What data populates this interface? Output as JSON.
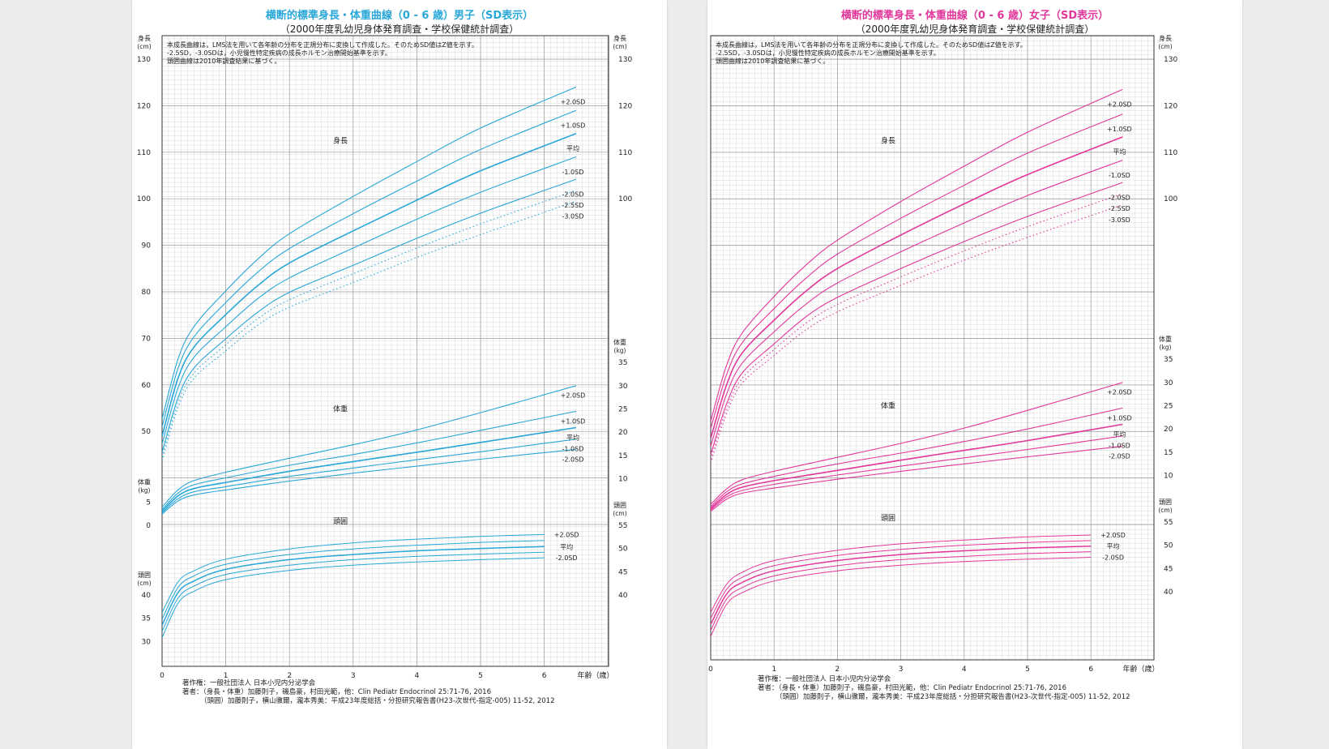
{
  "colors": {
    "boys": "#29a7d8",
    "girls": "#e2379a"
  },
  "charts": [
    {
      "id": "boys",
      "title": "横断的標準身長・体重曲線（0 - 6 歳）男子（SD表示）",
      "subtitle": "（2000年度乳幼児身体発育調査・学校保健統計調査）",
      "notes": [
        "本成長曲線は，LMS法を用いて各年齢の分布を正規分布に変換して作成した。そのためSD値はZ値を示す。",
        "-2.5SD，-3.0SDは，小児慢性特定疾病の成長ホルモン治療開始基準を示す。",
        "頭囲曲線は2010年調査結果に基づく。"
      ],
      "axis_left_height": "身長",
      "axis_unit_cm": "(cm)",
      "axis_weight": "体重",
      "axis_unit_kg": "(kg)",
      "axis_head": "頭囲",
      "x_label": "年齢（歳）",
      "section_height": "身長",
      "section_weight": "体重",
      "section_head": "頭囲",
      "footer": [
        "著作権：一般社団法人 日本小児内分泌学会",
        "著者：（身長・体重）加藤則子，磯島豪，村田光範，他：Clin Pediatr Endocrinol 25:71-76, 2016",
        "（頭囲）加藤則子，横山徹爾，瀧本秀美：平成23年度総括・分担研究報告書(H23-次世代-指定-005) 11-52, 2012"
      ]
    },
    {
      "id": "girls",
      "title": "横断的標準身長・体重曲線（0 - 6 歳）女子（SD表示）",
      "subtitle": "（2000年度乳幼児身体発育調査・学校保健統計調査）",
      "notes": [
        "本成長曲線は，LMS法を用いて各年齢の分布を正規分布に変換して作成した。そのためSD値はZ値を示す。",
        "-2.5SD，-3.0SDは，小児慢性特定疾病の成長ホルモン治療開始基準を示す。",
        "頭囲曲線は2010年調査結果に基づく。"
      ],
      "axis_left_height": "身長",
      "axis_unit_cm": "(cm)",
      "axis_weight": "体重",
      "axis_unit_kg": "(kg)",
      "axis_head": "頭囲",
      "x_label": "年齢（歳）",
      "section_height": "身長",
      "section_weight": "体重",
      "section_head": "頭囲",
      "footer": [
        "著作権：一般社団法人 日本小児内分泌学会",
        "著者：（身長・体重）加藤則子，磯島豪，村田光範，他：Clin Pediatr Endocrinol 25:71-76, 2016",
        "（頭囲）加藤則子，横山徹爾，瀧本秀美：平成23年度総括・分担研究報告書(H23-次世代-指定-005) 11-52, 2012"
      ]
    }
  ],
  "chart_data": [
    {
      "type": "line",
      "name": "boys",
      "x_ticks": [
        0,
        1,
        2,
        3,
        4,
        5,
        6
      ],
      "height_ticks": [
        30,
        35,
        40,
        50,
        60,
        70,
        80,
        90,
        100,
        110,
        120,
        130
      ],
      "weight_ticks_left": [
        0,
        5
      ],
      "weight_ticks_right": [
        10,
        15,
        20,
        25,
        30,
        35
      ],
      "head_ticks_right": [
        40,
        45,
        50,
        55
      ],
      "head_ticks_left": [
        30,
        35,
        40
      ],
      "height_ages": [
        0,
        0.25,
        0.5,
        1,
        1.5,
        2,
        3,
        4,
        5,
        6.5
      ],
      "height": [
        {
          "label": "+2.0SD",
          "values": [
            52.7,
            65.5,
            72.5,
            80.2,
            87.0,
            92.5,
            100.5,
            108.0,
            115.2,
            124.0
          ]
        },
        {
          "label": "+1.0SD",
          "values": [
            51.0,
            63.5,
            70.3,
            77.7,
            84.2,
            89.3,
            96.8,
            103.8,
            110.6,
            119.0
          ]
        },
        {
          "label": "平均",
          "values": [
            49.0,
            61.4,
            68.1,
            75.1,
            81.3,
            86.2,
            93.1,
            99.7,
            106.0,
            114.0
          ]
        },
        {
          "label": "-1.0SD",
          "values": [
            47.3,
            59.3,
            65.9,
            72.5,
            78.5,
            83.0,
            89.4,
            95.6,
            101.4,
            109.0
          ]
        },
        {
          "label": "-2.0SD",
          "values": [
            45.5,
            57.2,
            63.6,
            69.9,
            75.6,
            79.9,
            85.7,
            91.5,
            96.9,
            104.2
          ]
        },
        {
          "label": "-2.5SD",
          "values": [
            44.6,
            56.2,
            62.5,
            68.6,
            74.2,
            78.3,
            83.9,
            89.4,
            94.6,
            101.8
          ]
        },
        {
          "label": "-3.0SD",
          "values": [
            43.7,
            55.1,
            61.4,
            67.3,
            72.8,
            76.7,
            82.0,
            87.4,
            92.3,
            99.5
          ]
        }
      ],
      "weight_ages": [
        0,
        0.25,
        0.5,
        1,
        2,
        3,
        4,
        5,
        6.5
      ],
      "weight": [
        {
          "label": "+2.0SD",
          "values": [
            3.9,
            7.6,
            9.6,
            11.4,
            14.4,
            17.3,
            20.5,
            24.2,
            30.0
          ]
        },
        {
          "label": "+1.0SD",
          "values": [
            3.4,
            6.9,
            8.7,
            10.2,
            12.9,
            15.2,
            17.7,
            20.4,
            24.5
          ]
        },
        {
          "label": "平均",
          "values": [
            3.0,
            6.3,
            7.9,
            9.2,
            11.6,
            13.7,
            15.7,
            17.8,
            21.0
          ]
        },
        {
          "label": "-1.0SD",
          "values": [
            2.7,
            5.7,
            7.2,
            8.3,
            10.5,
            12.3,
            14.1,
            15.8,
            18.5
          ]
        },
        {
          "label": "-2.0SD",
          "values": [
            2.4,
            5.2,
            6.5,
            7.6,
            9.5,
            11.2,
            12.7,
            14.2,
            16.3
          ]
        }
      ],
      "head_ages": [
        0,
        0.25,
        0.5,
        1,
        2,
        3,
        4,
        5,
        6
      ],
      "head": [
        {
          "label": "+2.0SD",
          "values": [
            36.2,
            42.8,
            45.2,
            47.7,
            49.9,
            51.2,
            52.0,
            52.6,
            53.0
          ]
        },
        {
          "label": "平均",
          "values": [
            33.5,
            40.5,
            43.0,
            45.5,
            47.6,
            48.7,
            49.5,
            50.0,
            50.4
          ]
        },
        {
          "label": "-2.0SD",
          "values": [
            30.8,
            38.2,
            40.8,
            43.3,
            45.3,
            46.4,
            47.1,
            47.6,
            48.0
          ]
        },
        {
          "label": "",
          "values": [
            34.8,
            41.6,
            44.1,
            46.6,
            48.7,
            49.9,
            50.7,
            51.3,
            51.7
          ]
        },
        {
          "label": "",
          "values": [
            32.2,
            39.3,
            41.9,
            44.4,
            46.4,
            47.6,
            48.3,
            48.8,
            49.2
          ]
        }
      ],
      "weight_unlabeled_sd": "-1.5",
      "end_labels_height": [
        "+2.0SD",
        "+1.0SD",
        "平均",
        "-1.0SD",
        "-2.0SD",
        "-2.5SD",
        "-3.0SD"
      ],
      "end_labels_weight": [
        "+2.0SD",
        "+1.0SD",
        "平均",
        "-1.0SD",
        "-2.0SD"
      ],
      "end_labels_head": [
        "+2.0SD",
        "平均",
        "-2.0SD"
      ]
    },
    {
      "type": "line",
      "name": "girls",
      "x_ticks": [
        0,
        1,
        2,
        3,
        4,
        5,
        6
      ],
      "height_ticks": [
        30,
        35,
        40,
        50,
        60,
        70,
        80,
        90,
        100,
        110,
        120,
        130
      ],
      "weight_ticks_left": [
        0,
        5
      ],
      "weight_ticks_right": [
        10,
        15,
        20,
        25,
        30,
        35
      ],
      "head_ticks_right": [
        40,
        45,
        50,
        55
      ],
      "head_ticks_left": [
        30,
        35,
        40
      ],
      "height_ages": [
        0,
        0.25,
        0.5,
        1,
        1.5,
        2,
        3,
        4,
        5,
        6.5
      ],
      "height": [
        {
          "label": "+2.0SD",
          "values": [
            52.2,
            64.2,
            71.2,
            79.0,
            85.7,
            91.1,
            99.4,
            107.0,
            114.3,
            123.5
          ]
        },
        {
          "label": "+1.0SD",
          "values": [
            50.6,
            62.2,
            69.1,
            76.4,
            82.9,
            88.1,
            95.8,
            102.9,
            109.8,
            118.2
          ]
        },
        {
          "label": "平均",
          "values": [
            48.5,
            60.0,
            66.9,
            73.9,
            80.1,
            85.0,
            92.2,
            98.9,
            105.2,
            113.3
          ]
        },
        {
          "label": "-1.0SD",
          "values": [
            46.8,
            58.0,
            64.7,
            71.4,
            77.3,
            81.9,
            88.6,
            94.8,
            100.7,
            108.3
          ]
        },
        {
          "label": "-2.0SD",
          "values": [
            45.0,
            55.9,
            62.6,
            68.8,
            74.6,
            78.8,
            85.0,
            90.8,
            96.2,
            103.5
          ]
        },
        {
          "label": "-2.5SD",
          "values": [
            44.1,
            54.9,
            61.5,
            67.6,
            73.2,
            77.3,
            83.2,
            88.8,
            94.0,
            101.1
          ]
        },
        {
          "label": "-3.0SD",
          "values": [
            43.2,
            53.8,
            60.4,
            66.3,
            71.8,
            75.7,
            81.4,
            86.8,
            91.7,
            98.7
          ]
        }
      ],
      "weight_ages": [
        0,
        0.25,
        0.5,
        1,
        2,
        3,
        4,
        5,
        6.5
      ],
      "weight": [
        {
          "label": "+2.0SD",
          "values": [
            3.8,
            7.1,
            9.1,
            10.9,
            13.9,
            16.9,
            20.2,
            24.0,
            30.0
          ]
        },
        {
          "label": "+1.0SD",
          "values": [
            3.3,
            6.5,
            8.2,
            9.8,
            12.5,
            14.8,
            17.3,
            20.0,
            24.5
          ]
        },
        {
          "label": "平均",
          "values": [
            2.9,
            5.9,
            7.5,
            8.9,
            11.1,
            13.3,
            15.4,
            17.5,
            21.0
          ]
        },
        {
          "label": "-1.0SD",
          "values": [
            2.6,
            5.4,
            6.8,
            8.1,
            10.1,
            12.0,
            13.8,
            15.6,
            18.5
          ]
        },
        {
          "label": "-2.0SD",
          "values": [
            2.3,
            4.9,
            6.2,
            7.3,
            9.2,
            10.9,
            12.5,
            14.0,
            16.3
          ]
        }
      ],
      "head_ages": [
        0,
        0.25,
        0.5,
        1,
        2,
        3,
        4,
        5,
        6
      ],
      "head": [
        {
          "label": "+2.0SD",
          "values": [
            35.6,
            41.6,
            44.2,
            46.7,
            48.9,
            50.3,
            51.1,
            51.8,
            52.2
          ]
        },
        {
          "label": "平均",
          "values": [
            33.0,
            39.5,
            42.0,
            44.5,
            46.7,
            48.0,
            48.8,
            49.4,
            49.8
          ]
        },
        {
          "label": "-2.0SD",
          "values": [
            30.4,
            37.3,
            39.8,
            42.3,
            44.5,
            45.7,
            46.5,
            47.0,
            47.4
          ]
        },
        {
          "label": "",
          "values": [
            34.3,
            40.5,
            43.1,
            45.6,
            47.8,
            49.1,
            50.0,
            50.6,
            51.0
          ]
        },
        {
          "label": "",
          "values": [
            31.7,
            38.4,
            40.9,
            43.4,
            45.6,
            46.9,
            47.6,
            48.2,
            48.6
          ]
        }
      ],
      "weight_unlabeled_sd": "-1.5",
      "end_labels_height": [
        "+2.0SD",
        "+1.0SD",
        "平均",
        "-1.0SD",
        "-2.0SD",
        "-2.5SD",
        "-3.0SD"
      ],
      "end_labels_weight": [
        "+2.0SD",
        "+1.0SD",
        "平均",
        "-1.0SD",
        "-2.0SD"
      ],
      "end_labels_head": [
        "+2.0SD",
        "平均",
        "-2.0SD"
      ]
    }
  ]
}
